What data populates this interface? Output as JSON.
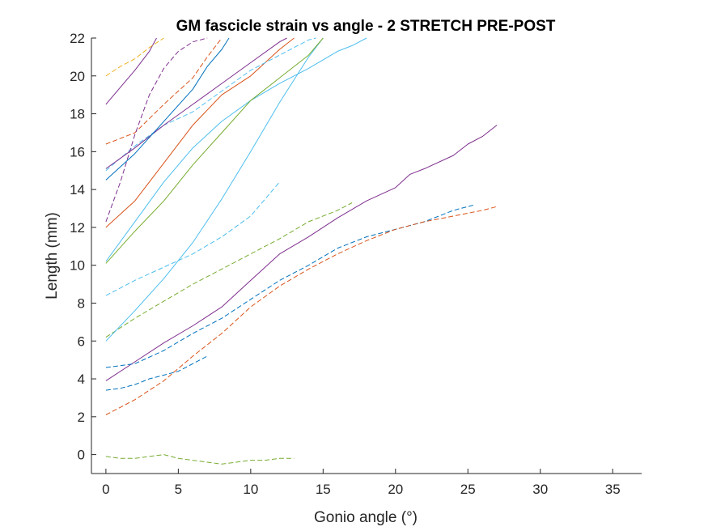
{
  "chart_data": {
    "type": "line",
    "title": "GM fascicle strain vs angle - 2 STRETCH PRE-POST",
    "xlabel": "Gonio angle (°)",
    "ylabel": "Length (mm)",
    "xlim": [
      -1,
      37
    ],
    "ylim": [
      -1,
      22
    ],
    "xticks": [
      0,
      5,
      10,
      15,
      20,
      25,
      30,
      35
    ],
    "yticks": [
      0,
      2,
      4,
      6,
      8,
      10,
      12,
      14,
      16,
      18,
      20,
      22
    ],
    "grid": false,
    "box": "left-bottom",
    "series": [
      {
        "color": "#7E2F8E",
        "style": "solid",
        "points": [
          [
            0,
            3.9
          ],
          [
            2,
            4.9
          ],
          [
            4,
            5.9
          ],
          [
            6,
            6.8
          ],
          [
            8,
            7.8
          ],
          [
            10,
            9.2
          ],
          [
            12,
            10.6
          ],
          [
            14,
            11.5
          ],
          [
            16,
            12.5
          ],
          [
            18,
            13.4
          ],
          [
            20,
            14.1
          ],
          [
            21,
            14.8
          ],
          [
            22,
            15.1
          ],
          [
            24,
            15.8
          ],
          [
            25,
            16.4
          ],
          [
            26,
            16.8
          ],
          [
            27,
            17.4
          ]
        ]
      },
      {
        "color": "#0072BD",
        "style": "dashed",
        "points": [
          [
            0,
            4.6
          ],
          [
            1,
            4.7
          ],
          [
            2,
            4.8
          ],
          [
            4,
            5.5
          ],
          [
            6,
            6.4
          ],
          [
            8,
            7.2
          ],
          [
            10,
            8.2
          ],
          [
            12,
            9.2
          ],
          [
            14,
            10.0
          ],
          [
            16,
            10.9
          ],
          [
            18,
            11.5
          ],
          [
            20,
            11.9
          ],
          [
            22,
            12.3
          ],
          [
            24,
            12.9
          ],
          [
            25,
            13.1
          ],
          [
            25.5,
            13.2
          ]
        ]
      },
      {
        "color": "#0072BD",
        "style": "dashed",
        "points": [
          [
            0,
            3.4
          ],
          [
            1,
            3.5
          ],
          [
            2,
            3.7
          ],
          [
            3,
            4.0
          ],
          [
            4,
            4.2
          ],
          [
            5,
            4.4
          ],
          [
            6,
            4.8
          ],
          [
            7,
            5.2
          ]
        ]
      },
      {
        "color": "#D95319",
        "style": "dashed",
        "points": [
          [
            0,
            2.1
          ],
          [
            2,
            2.9
          ],
          [
            4,
            3.9
          ],
          [
            6,
            5.2
          ],
          [
            8,
            6.4
          ],
          [
            10,
            7.8
          ],
          [
            12,
            8.9
          ],
          [
            14,
            9.8
          ],
          [
            16,
            10.6
          ],
          [
            18,
            11.3
          ],
          [
            20,
            11.9
          ],
          [
            22,
            12.3
          ],
          [
            24,
            12.6
          ],
          [
            26,
            12.9
          ],
          [
            27,
            13.1
          ]
        ]
      },
      {
        "color": "#77AC30",
        "style": "dashed",
        "points": [
          [
            0,
            -0.1
          ],
          [
            1,
            -0.2
          ],
          [
            2,
            -0.2
          ],
          [
            3,
            -0.1
          ],
          [
            4,
            0.0
          ],
          [
            5,
            -0.2
          ],
          [
            6,
            -0.3
          ],
          [
            7,
            -0.4
          ],
          [
            8,
            -0.5
          ],
          [
            9,
            -0.4
          ],
          [
            10,
            -0.3
          ],
          [
            11,
            -0.3
          ],
          [
            12,
            -0.2
          ],
          [
            13,
            -0.2
          ]
        ]
      },
      {
        "color": "#77AC30",
        "style": "dashed",
        "points": [
          [
            0,
            6.2
          ],
          [
            2,
            7.2
          ],
          [
            4,
            8.1
          ],
          [
            6,
            9.0
          ],
          [
            8,
            9.8
          ],
          [
            10,
            10.6
          ],
          [
            12,
            11.4
          ],
          [
            14,
            12.3
          ],
          [
            16,
            12.9
          ],
          [
            17,
            13.3
          ]
        ]
      },
      {
        "color": "#4DBEEE",
        "style": "dashed",
        "points": [
          [
            0,
            8.4
          ],
          [
            2,
            9.2
          ],
          [
            4,
            9.9
          ],
          [
            6,
            10.6
          ],
          [
            8,
            11.5
          ],
          [
            10,
            12.6
          ],
          [
            12,
            14.4
          ]
        ]
      },
      {
        "color": "#4DBEEE",
        "style": "solid",
        "points": [
          [
            0,
            6.0
          ],
          [
            2,
            7.6
          ],
          [
            4,
            9.3
          ],
          [
            6,
            11.2
          ],
          [
            8,
            13.5
          ],
          [
            10,
            16.0
          ],
          [
            12,
            18.6
          ],
          [
            14,
            21.0
          ],
          [
            15,
            22.0
          ]
        ]
      },
      {
        "color": "#4DBEEE",
        "style": "solid",
        "points": [
          [
            0,
            10.2
          ],
          [
            2,
            12.3
          ],
          [
            4,
            14.4
          ],
          [
            6,
            16.2
          ],
          [
            8,
            17.6
          ],
          [
            10,
            18.7
          ],
          [
            12,
            19.6
          ],
          [
            14,
            20.4
          ],
          [
            16,
            21.3
          ],
          [
            17,
            21.6
          ],
          [
            18,
            22.0
          ]
        ]
      },
      {
        "color": "#77AC30",
        "style": "solid",
        "points": [
          [
            0,
            10.1
          ],
          [
            2,
            11.8
          ],
          [
            4,
            13.4
          ],
          [
            6,
            15.3
          ],
          [
            8,
            17.0
          ],
          [
            10,
            18.7
          ],
          [
            12,
            19.9
          ],
          [
            14,
            21.1
          ],
          [
            15,
            22.0
          ]
        ]
      },
      {
        "color": "#D95319",
        "style": "solid",
        "points": [
          [
            0,
            12.0
          ],
          [
            2,
            13.4
          ],
          [
            4,
            15.4
          ],
          [
            6,
            17.4
          ],
          [
            8,
            19.0
          ],
          [
            10,
            20.0
          ],
          [
            12,
            21.4
          ],
          [
            13,
            22.0
          ]
        ]
      },
      {
        "color": "#4DBEEE",
        "style": "dashed",
        "points": [
          [
            0,
            15.0
          ],
          [
            2,
            16.3
          ],
          [
            4,
            17.4
          ],
          [
            6,
            18.1
          ],
          [
            8,
            19.2
          ],
          [
            10,
            20.3
          ],
          [
            12,
            21.1
          ],
          [
            14,
            21.9
          ],
          [
            14.5,
            22.0
          ]
        ]
      },
      {
        "color": "#7E2F8E",
        "style": "solid",
        "points": [
          [
            0,
            15.1
          ],
          [
            2,
            16.2
          ],
          [
            4,
            17.4
          ],
          [
            6,
            18.5
          ],
          [
            8,
            19.6
          ],
          [
            10,
            20.7
          ],
          [
            12,
            21.8
          ],
          [
            12.5,
            22.0
          ]
        ]
      },
      {
        "color": "#0072BD",
        "style": "solid",
        "points": [
          [
            0,
            14.5
          ],
          [
            2,
            15.9
          ],
          [
            4,
            17.6
          ],
          [
            6,
            19.3
          ],
          [
            7,
            20.5
          ],
          [
            8,
            21.4
          ],
          [
            8.5,
            22.0
          ]
        ]
      },
      {
        "color": "#D95319",
        "style": "dashed",
        "points": [
          [
            0,
            16.4
          ],
          [
            2,
            17.0
          ],
          [
            4,
            18.5
          ],
          [
            6,
            19.9
          ],
          [
            7,
            21.0
          ],
          [
            8,
            22.0
          ]
        ]
      },
      {
        "color": "#7E2F8E",
        "style": "dashed",
        "points": [
          [
            0,
            12.3
          ],
          [
            1,
            14.4
          ],
          [
            2,
            16.9
          ],
          [
            3,
            19.0
          ],
          [
            4,
            20.4
          ],
          [
            5,
            21.3
          ],
          [
            6,
            21.8
          ],
          [
            7,
            22.0
          ]
        ]
      },
      {
        "color": "#7E2F8E",
        "style": "solid",
        "points": [
          [
            0,
            18.5
          ],
          [
            1,
            19.4
          ],
          [
            2,
            20.3
          ],
          [
            3,
            21.3
          ],
          [
            3.5,
            22.0
          ]
        ]
      },
      {
        "color": "#EDB120",
        "style": "dashed",
        "points": [
          [
            0,
            20.0
          ],
          [
            1,
            20.5
          ],
          [
            2,
            20.9
          ],
          [
            3,
            21.5
          ],
          [
            4,
            22.0
          ]
        ]
      }
    ]
  }
}
